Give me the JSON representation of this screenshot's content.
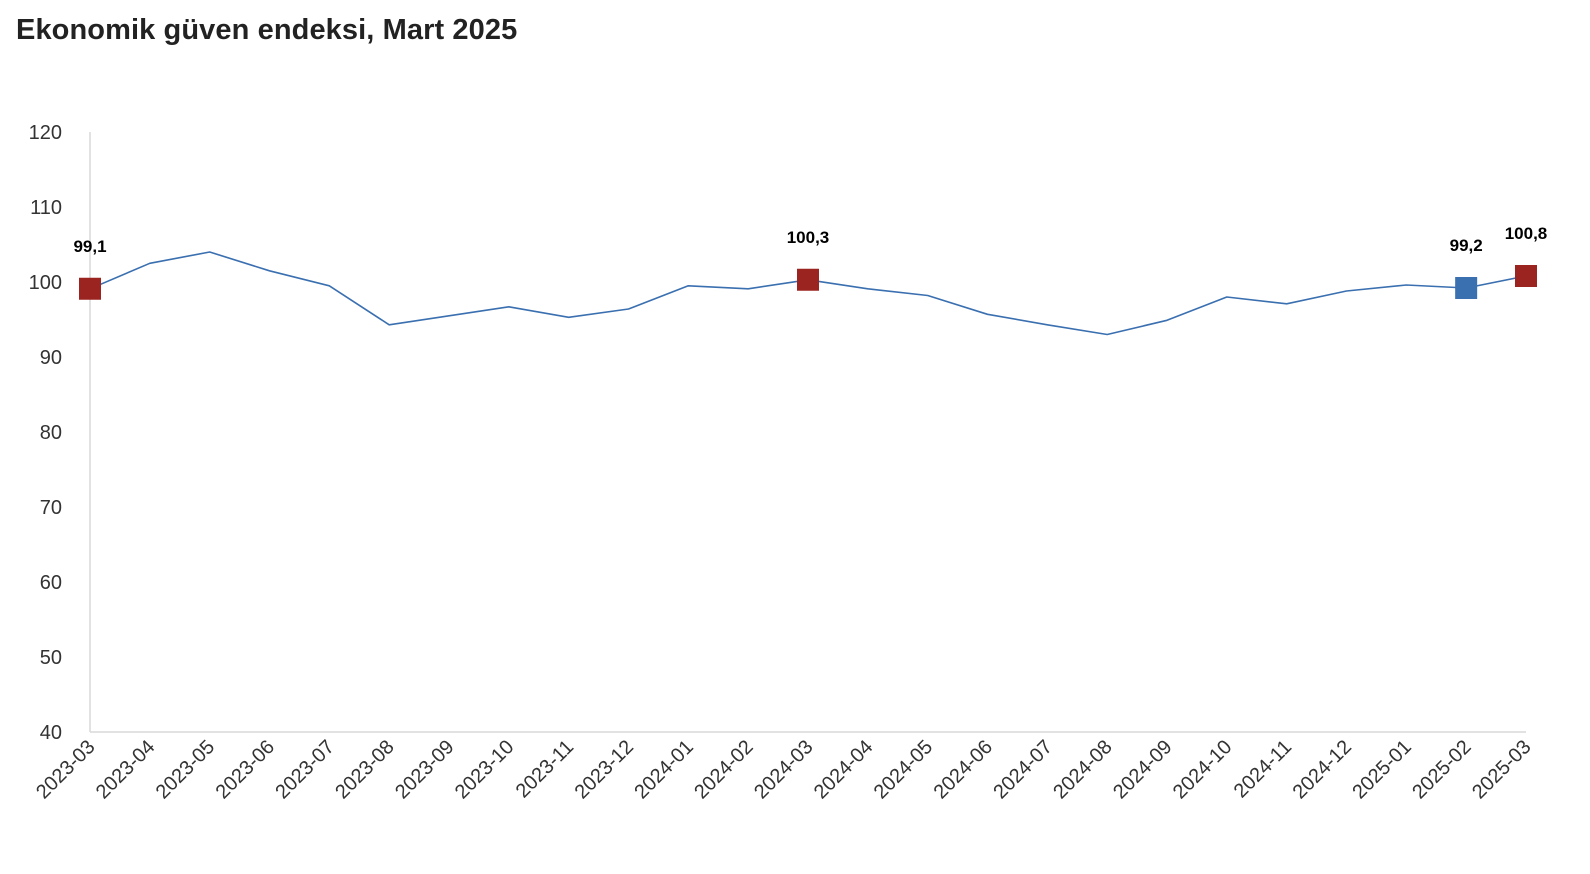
{
  "title": "Ekonomik güven endeksi, Mart 2025",
  "colors": {
    "line": "#3a6fb0",
    "highlight": "#9b2320",
    "previous": "#3a6fb0",
    "axis": "#d9d9d9",
    "text": "#333333"
  },
  "chart_data": {
    "type": "line",
    "title": "Ekonomik güven endeksi, Mart 2025",
    "xlabel": "",
    "ylabel": "",
    "ylim": [
      40,
      120
    ],
    "yticks": [
      40,
      50,
      60,
      70,
      80,
      90,
      100,
      110,
      120
    ],
    "grid": false,
    "legend": "none",
    "categories": [
      "2023-03",
      "2023-04",
      "2023-05",
      "2023-06",
      "2023-07",
      "2023-08",
      "2023-09",
      "2023-10",
      "2023-11",
      "2023-12",
      "2024-01",
      "2024-02",
      "2024-03",
      "2024-04",
      "2024-05",
      "2024-06",
      "2024-07",
      "2024-08",
      "2024-09",
      "2024-10",
      "2024-11",
      "2024-12",
      "2025-01",
      "2025-02",
      "2025-03"
    ],
    "series": [
      {
        "values": [
          99.1,
          102.5,
          104.0,
          101.5,
          99.5,
          94.3,
          95.5,
          96.7,
          95.3,
          96.4,
          99.5,
          99.1,
          100.3,
          99.1,
          98.2,
          95.7,
          94.3,
          93.0,
          94.9,
          98.0,
          97.1,
          98.8,
          99.6,
          99.2,
          100.8
        ]
      }
    ],
    "markers": [
      {
        "category": "2023-03",
        "value": 99.1,
        "label": "99,1",
        "color": "#9b2320"
      },
      {
        "category": "2024-03",
        "value": 100.3,
        "label": "100,3",
        "color": "#9b2320"
      },
      {
        "category": "2025-02",
        "value": 99.2,
        "label": "99,2",
        "color": "#3a6fb0"
      },
      {
        "category": "2025-03",
        "value": 100.8,
        "label": "100,8",
        "color": "#9b2320"
      }
    ]
  }
}
